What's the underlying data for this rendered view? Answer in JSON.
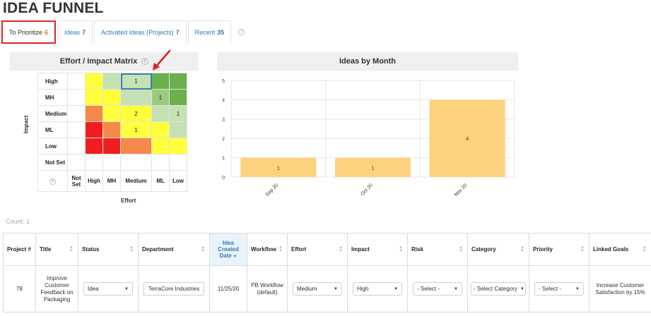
{
  "page": {
    "title": "IDEA FUNNEL"
  },
  "tabs": [
    {
      "label": "To Prioritize",
      "count": "6"
    },
    {
      "label": "Ideas",
      "count": "7"
    },
    {
      "label": "Activated Ideas (Projects)",
      "count": "7"
    },
    {
      "label": "Recent",
      "count": "35"
    }
  ],
  "matrix": {
    "title": "Effort / Impact Matrix",
    "axis_impact": "Impact",
    "axis_effort": "Effort",
    "rows": [
      {
        "label": "High",
        "cells": [
          "",
          "",
          "",
          "1",
          "",
          ""
        ]
      },
      {
        "label": "MH",
        "cells": [
          "",
          "",
          "",
          "",
          "1",
          ""
        ]
      },
      {
        "label": "Medium",
        "cells": [
          "",
          "",
          "",
          "2",
          "",
          "1"
        ]
      },
      {
        "label": "ML",
        "cells": [
          "",
          "",
          "",
          "1",
          "",
          ""
        ]
      },
      {
        "label": "Low",
        "cells": [
          "",
          "",
          "",
          "",
          "",
          ""
        ]
      },
      {
        "label": "Not Set",
        "cells": [
          "",
          "",
          "",
          "",
          "",
          ""
        ]
      }
    ],
    "columns": [
      "Not Set",
      "High",
      "MH",
      "Medium",
      "ML",
      "Low"
    ],
    "colors": {
      "red": "#f01f1f",
      "orange": "#f5894a",
      "yellow": "#ffff3c",
      "pale_green": "#c4e2b4",
      "mid_green": "#9bcb7e",
      "green": "#6ab04c",
      "white": "#ffffff"
    }
  },
  "chart_data": {
    "type": "bar",
    "title": "Ideas by Month",
    "categories": [
      "Sep 20",
      "Oct 20",
      "Nov 20"
    ],
    "values": [
      1,
      1,
      4
    ],
    "ylim": [
      0,
      5
    ],
    "yticks": [
      "0",
      "1",
      "2",
      "3",
      "4",
      "5"
    ],
    "bar_color": "#fdd27f",
    "grid": true
  },
  "count_text": "Count: 1",
  "table": {
    "headers": [
      "Project #",
      "Title",
      "Status",
      "Department",
      "Idea Created Date",
      "Workflow",
      "Effort",
      "Impact",
      "Risk",
      "Category",
      "Priority",
      "Linked Goals"
    ],
    "row": {
      "project": "78",
      "title": "Improve Customer Feedback on Packaging",
      "status": "Idea",
      "department": "TerraCore Industries",
      "created": "11/25/20",
      "workflow": "PB Workflow (default)",
      "effort": "Medium",
      "impact": "High",
      "risk": "- Select -",
      "category": "- Select Category",
      "priority": "- Select -",
      "goals": "Increase Customer Satisfaction by 15%"
    }
  }
}
